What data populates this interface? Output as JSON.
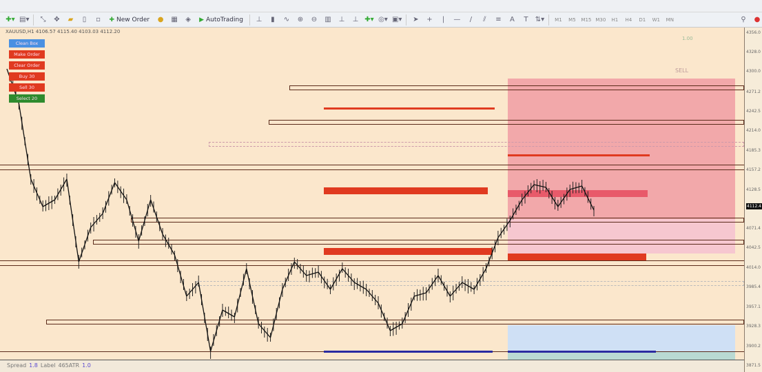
{
  "toolbar": {
    "new_order": "New Order",
    "autotrading": "AutoTrading",
    "timeframes": [
      "M1",
      "M5",
      "M15",
      "M30",
      "H1",
      "H4",
      "D1",
      "W1",
      "MN"
    ]
  },
  "chart": {
    "symbol_info": "XAUUSD,H1  4106.57 4115.40 4103.03 4112.20",
    "buttons": [
      {
        "label": "Clean Box",
        "color": "#4a90e2"
      },
      {
        "label": "Make Order",
        "color": "#e03a20"
      },
      {
        "label": "Clear Order",
        "color": "#e03a20"
      },
      {
        "label": "Buy 30",
        "color": "#e03a20"
      },
      {
        "label": "Sell 30",
        "color": "#e03a20"
      },
      {
        "label": "Select 20",
        "color": "#2e8b2e"
      }
    ],
    "trade_panel": {
      "lots": "1.00",
      "side": "SELL"
    },
    "price_labels": [
      "4356.0",
      "4328.0",
      "4300.0",
      "4271.2",
      "4242.5",
      "4214.0",
      "4185.3",
      "4157.2",
      "4128.5",
      "4071.4",
      "4042.5",
      "4014.0",
      "3985.4",
      "3957.1",
      "3928.3",
      "3900.2",
      "3871.5"
    ],
    "current_price": "4112.4",
    "colors": {
      "background": "#fbe7cc",
      "supply_zone": "#f2a8aa",
      "demand_zone": "#cfe0f5",
      "order_bar": "#e03a20",
      "candles": "#111111"
    }
  },
  "chart_data": {
    "type": "line",
    "x": [
      0,
      1,
      2,
      3,
      4,
      5,
      6,
      7,
      8,
      9,
      10,
      11,
      12,
      13,
      14,
      15,
      16,
      17,
      18,
      19,
      20,
      21,
      22,
      23,
      24,
      25,
      26,
      27,
      28,
      29,
      30,
      31,
      32,
      33,
      34,
      35,
      36,
      37,
      38,
      39,
      40,
      41,
      42,
      43,
      44,
      45,
      46,
      47,
      48,
      49
    ],
    "values": [
      4300,
      4250,
      4140,
      4100,
      4110,
      4140,
      4020,
      4070,
      4090,
      4135,
      4110,
      4050,
      4110,
      4060,
      4030,
      3970,
      3990,
      3890,
      3950,
      3940,
      4010,
      3930,
      3910,
      3980,
      4020,
      4000,
      4005,
      3980,
      4010,
      3990,
      3980,
      3960,
      3920,
      3930,
      3970,
      3975,
      4000,
      3970,
      3990,
      3980,
      4010,
      4055,
      4080,
      4110,
      4132,
      4128,
      4100,
      4125,
      4130,
      4095
    ]
  },
  "status": {
    "spread_label": "Spread",
    "spread": "1.8",
    "label2": "Label",
    "atr": "465ATR",
    "value": "1.0"
  }
}
